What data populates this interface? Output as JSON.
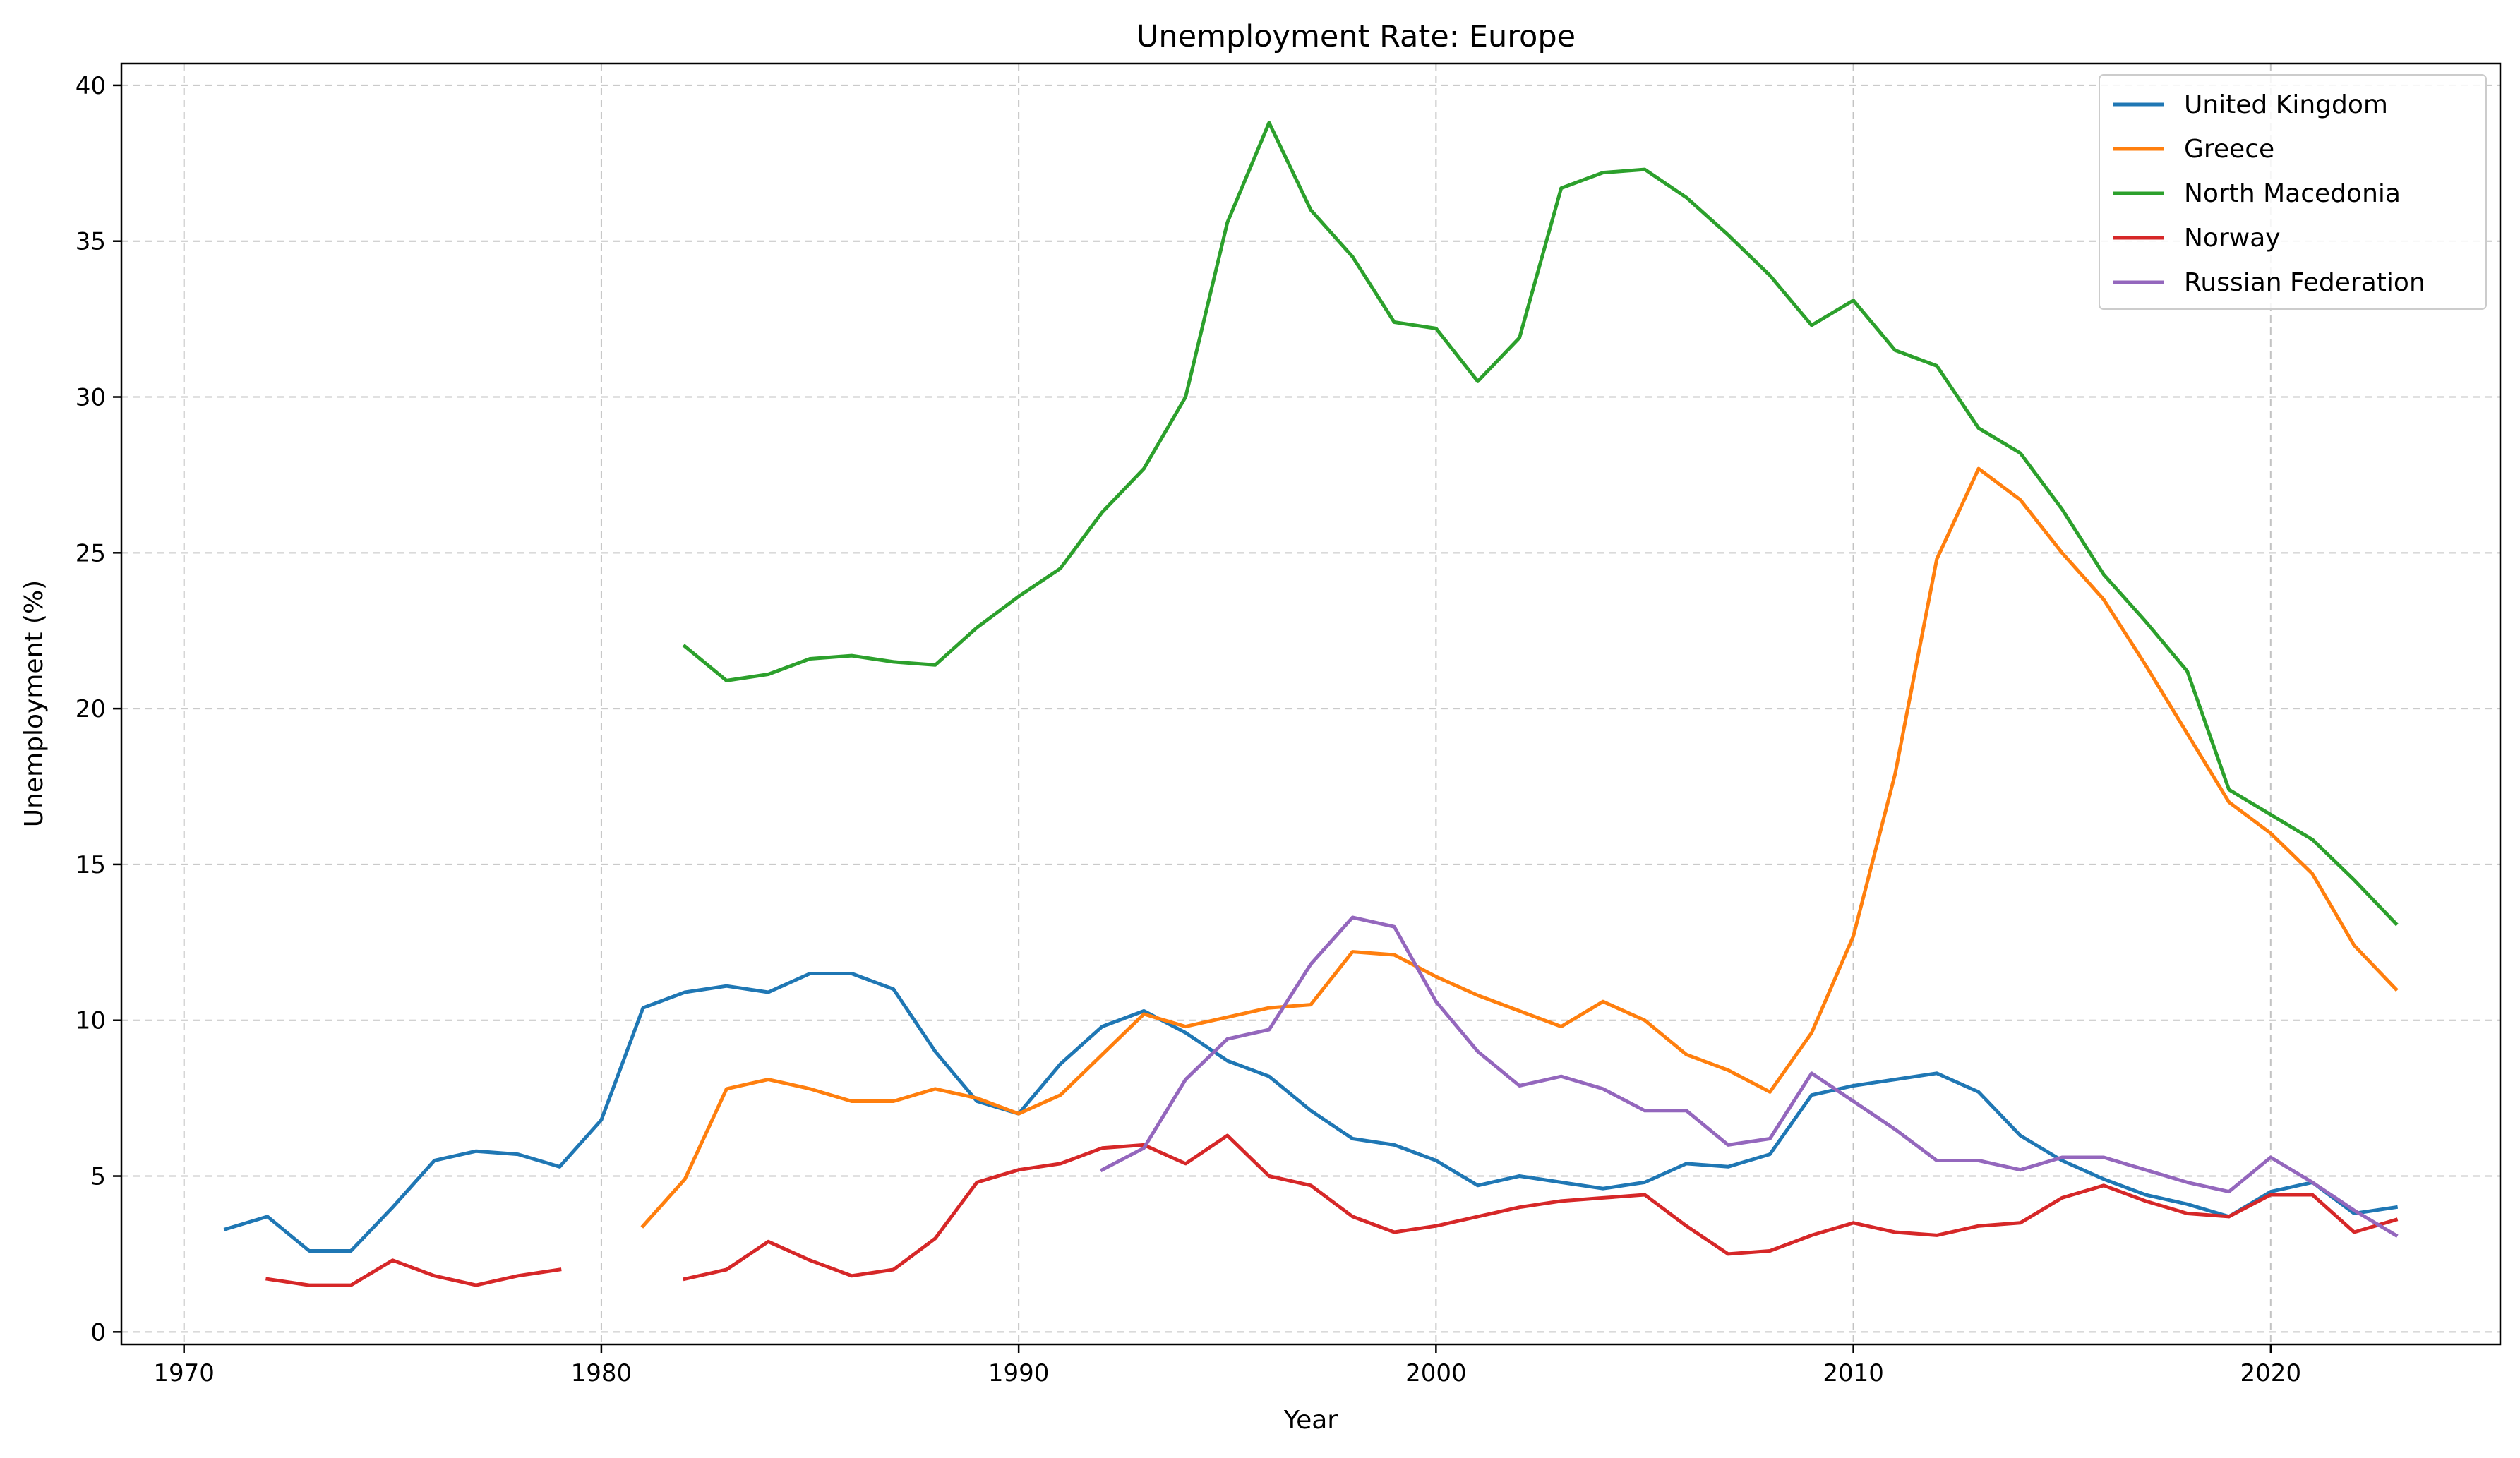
{
  "chart_data": {
    "type": "line",
    "title": "Unemployment Rate: Europe",
    "xlabel": "Year",
    "ylabel": "Unemployment (%)",
    "xlim": [
      1968.5,
      2025.5
    ],
    "ylim": [
      -0.4,
      40.7
    ],
    "xticks": [
      1970,
      1980,
      1990,
      2000,
      2010,
      2020
    ],
    "yticks": [
      0,
      5,
      10,
      15,
      20,
      25,
      30,
      35,
      40
    ],
    "grid": true,
    "legend_position": "top-right",
    "series": [
      {
        "name": "United Kingdom",
        "color": "#1f77b4",
        "points": [
          [
            1971,
            3.3
          ],
          [
            1972,
            3.7
          ],
          [
            1973,
            2.6
          ],
          [
            1974,
            2.6
          ],
          [
            1975,
            4.0
          ],
          [
            1976,
            5.5
          ],
          [
            1977,
            5.8
          ],
          [
            1978,
            5.7
          ],
          [
            1979,
            5.3
          ],
          [
            1980,
            6.8
          ],
          [
            1981,
            10.4
          ],
          [
            1982,
            10.9
          ],
          [
            1983,
            11.1
          ],
          [
            1984,
            10.9
          ],
          [
            1985,
            11.5
          ],
          [
            1986,
            11.5
          ],
          [
            1987,
            11.0
          ],
          [
            1988,
            9.0
          ],
          [
            1989,
            7.4
          ],
          [
            1990,
            7.0
          ],
          [
            1991,
            8.6
          ],
          [
            1992,
            9.8
          ],
          [
            1993,
            10.3
          ],
          [
            1994,
            9.6
          ],
          [
            1995,
            8.7
          ],
          [
            1996,
            8.2
          ],
          [
            1997,
            7.1
          ],
          [
            1998,
            6.2
          ],
          [
            1999,
            6.0
          ],
          [
            2000,
            5.5
          ],
          [
            2001,
            4.7
          ],
          [
            2002,
            5.0
          ],
          [
            2003,
            4.8
          ],
          [
            2004,
            4.6
          ],
          [
            2005,
            4.8
          ],
          [
            2006,
            5.4
          ],
          [
            2007,
            5.3
          ],
          [
            2008,
            5.7
          ],
          [
            2009,
            7.6
          ],
          [
            2010,
            7.9
          ],
          [
            2011,
            8.1
          ],
          [
            2012,
            8.3
          ],
          [
            2013,
            7.7
          ],
          [
            2014,
            6.3
          ],
          [
            2015,
            5.5
          ],
          [
            2016,
            4.9
          ],
          [
            2017,
            4.4
          ],
          [
            2018,
            4.1
          ],
          [
            2019,
            3.7
          ],
          [
            2020,
            4.5
          ],
          [
            2021,
            4.8
          ],
          [
            2022,
            3.8
          ],
          [
            2023,
            4.0
          ]
        ]
      },
      {
        "name": "Greece",
        "color": "#ff7f0e",
        "points": [
          [
            1981,
            3.4
          ],
          [
            1982,
            4.9
          ],
          [
            1983,
            7.8
          ],
          [
            1984,
            8.1
          ],
          [
            1985,
            7.8
          ],
          [
            1986,
            7.4
          ],
          [
            1987,
            7.4
          ],
          [
            1988,
            7.8
          ],
          [
            1989,
            7.5
          ],
          [
            1990,
            7.0
          ],
          [
            1991,
            7.6
          ],
          [
            1992,
            8.9
          ],
          [
            1993,
            10.2
          ],
          [
            1994,
            9.8
          ],
          [
            1995,
            10.1
          ],
          [
            1996,
            10.4
          ],
          [
            1997,
            10.5
          ],
          [
            1998,
            12.2
          ],
          [
            1999,
            12.1
          ],
          [
            2000,
            11.4
          ],
          [
            2001,
            10.8
          ],
          [
            2002,
            10.3
          ],
          [
            2003,
            9.8
          ],
          [
            2004,
            10.6
          ],
          [
            2005,
            10.0
          ],
          [
            2006,
            8.9
          ],
          [
            2007,
            8.4
          ],
          [
            2008,
            7.7
          ],
          [
            2009,
            9.6
          ],
          [
            2010,
            12.7
          ],
          [
            2011,
            17.9
          ],
          [
            2012,
            24.8
          ],
          [
            2013,
            27.7
          ],
          [
            2014,
            26.7
          ],
          [
            2015,
            25.0
          ],
          [
            2016,
            23.5
          ],
          [
            2017,
            21.4
          ],
          [
            2018,
            19.2
          ],
          [
            2019,
            17.0
          ],
          [
            2020,
            16.0
          ],
          [
            2021,
            14.7
          ],
          [
            2022,
            12.4
          ],
          [
            2023,
            11.0
          ]
        ]
      },
      {
        "name": "North Macedonia",
        "color": "#2ca02c",
        "points": [
          [
            1982,
            22.0
          ],
          [
            1983,
            20.9
          ],
          [
            1984,
            21.1
          ],
          [
            1985,
            21.6
          ],
          [
            1986,
            21.7
          ],
          [
            1987,
            21.5
          ],
          [
            1988,
            21.4
          ],
          [
            1989,
            22.6
          ],
          [
            1990,
            23.6
          ],
          [
            1991,
            24.5
          ],
          [
            1992,
            26.3
          ],
          [
            1993,
            27.7
          ],
          [
            1994,
            30.0
          ],
          [
            1995,
            35.6
          ],
          [
            1996,
            38.8
          ],
          [
            1997,
            36.0
          ],
          [
            1998,
            34.5
          ],
          [
            1999,
            32.4
          ],
          [
            2000,
            32.2
          ],
          [
            2001,
            30.5
          ],
          [
            2002,
            31.9
          ],
          [
            2003,
            36.7
          ],
          [
            2004,
            37.2
          ],
          [
            2005,
            37.3
          ],
          [
            2006,
            36.4
          ],
          [
            2007,
            35.2
          ],
          [
            2008,
            33.9
          ],
          [
            2009,
            32.3
          ],
          [
            2010,
            33.1
          ],
          [
            2011,
            31.5
          ],
          [
            2012,
            31.0
          ],
          [
            2013,
            29.0
          ],
          [
            2014,
            28.2
          ],
          [
            2015,
            26.4
          ],
          [
            2016,
            24.3
          ],
          [
            2017,
            22.8
          ],
          [
            2018,
            21.2
          ],
          [
            2019,
            17.4
          ],
          [
            2020,
            16.6
          ],
          [
            2021,
            15.8
          ],
          [
            2022,
            14.5
          ],
          [
            2023,
            13.1
          ]
        ]
      },
      {
        "name": "Norway",
        "color": "#d62728",
        "points": [
          [
            1972,
            1.7
          ],
          [
            1973,
            1.5
          ],
          [
            1974,
            1.5
          ],
          [
            1975,
            2.3
          ],
          [
            1976,
            1.8
          ],
          [
            1977,
            1.5
          ],
          [
            1978,
            1.8
          ],
          [
            1979,
            2.0
          ],
          [
            1980,
            null
          ],
          [
            1982,
            1.7
          ],
          [
            1983,
            2.0
          ],
          [
            1984,
            2.9
          ],
          [
            1985,
            2.3
          ],
          [
            1986,
            1.8
          ],
          [
            1987,
            2.0
          ],
          [
            1988,
            3.0
          ],
          [
            1989,
            4.8
          ],
          [
            1990,
            5.2
          ],
          [
            1991,
            5.4
          ],
          [
            1992,
            5.9
          ],
          [
            1993,
            6.0
          ],
          [
            1994,
            5.4
          ],
          [
            1995,
            6.3
          ],
          [
            1996,
            5.0
          ],
          [
            1997,
            4.7
          ],
          [
            1998,
            3.7
          ],
          [
            1999,
            3.2
          ],
          [
            2000,
            3.4
          ],
          [
            2001,
            3.7
          ],
          [
            2002,
            4.0
          ],
          [
            2003,
            4.2
          ],
          [
            2004,
            4.3
          ],
          [
            2005,
            4.4
          ],
          [
            2006,
            3.4
          ],
          [
            2007,
            2.5
          ],
          [
            2008,
            2.6
          ],
          [
            2009,
            3.1
          ],
          [
            2010,
            3.5
          ],
          [
            2011,
            3.2
          ],
          [
            2012,
            3.1
          ],
          [
            2013,
            3.4
          ],
          [
            2014,
            3.5
          ],
          [
            2015,
            4.3
          ],
          [
            2016,
            4.7
          ],
          [
            2017,
            4.2
          ],
          [
            2018,
            3.8
          ],
          [
            2019,
            3.7
          ],
          [
            2020,
            4.4
          ],
          [
            2021,
            4.4
          ],
          [
            2022,
            3.2
          ],
          [
            2023,
            3.6
          ]
        ]
      },
      {
        "name": "Russian Federation",
        "color": "#9467bd",
        "points": [
          [
            1992,
            5.2
          ],
          [
            1993,
            5.9
          ],
          [
            1994,
            8.1
          ],
          [
            1995,
            9.4
          ],
          [
            1996,
            9.7
          ],
          [
            1997,
            11.8
          ],
          [
            1998,
            13.3
          ],
          [
            1999,
            13.0
          ],
          [
            2000,
            10.6
          ],
          [
            2001,
            9.0
          ],
          [
            2002,
            7.9
          ],
          [
            2003,
            8.2
          ],
          [
            2004,
            7.8
          ],
          [
            2005,
            7.1
          ],
          [
            2006,
            7.1
          ],
          [
            2007,
            6.0
          ],
          [
            2008,
            6.2
          ],
          [
            2009,
            8.3
          ],
          [
            2010,
            7.4
          ],
          [
            2011,
            6.5
          ],
          [
            2012,
            5.5
          ],
          [
            2013,
            5.5
          ],
          [
            2014,
            5.2
          ],
          [
            2015,
            5.6
          ],
          [
            2016,
            5.6
          ],
          [
            2017,
            5.2
          ],
          [
            2018,
            4.8
          ],
          [
            2019,
            4.5
          ],
          [
            2020,
            5.6
          ],
          [
            2021,
            4.8
          ],
          [
            2022,
            3.9
          ],
          [
            2023,
            3.1
          ]
        ]
      }
    ]
  }
}
